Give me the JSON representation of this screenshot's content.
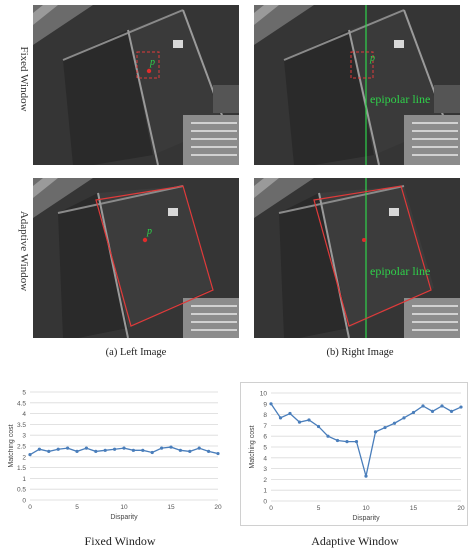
{
  "rows": [
    {
      "label": "Fixed Window"
    },
    {
      "label": "Adaptive Window"
    }
  ],
  "overlay": {
    "point_label": "p",
    "epipolar_label": "epipolar line",
    "colors": {
      "window": "#e03a3a",
      "epipolar": "#2fd24a",
      "point": "#e22b2b"
    }
  },
  "captions": {
    "left": "(a) Left Image",
    "right": "(b) Right Image"
  },
  "chart_data": [
    {
      "type": "line",
      "x": [
        0,
        1,
        2,
        3,
        4,
        5,
        6,
        7,
        8,
        9,
        10,
        11,
        12,
        13,
        14,
        15,
        16,
        17,
        18,
        19,
        20
      ],
      "series": [
        {
          "values": [
            2.1,
            2.35,
            2.25,
            2.35,
            2.4,
            2.25,
            2.4,
            2.25,
            2.3,
            2.35,
            2.4,
            2.3,
            2.3,
            2.2,
            2.4,
            2.45,
            2.3,
            2.25,
            2.4,
            2.25,
            2.15
          ]
        }
      ],
      "title": "",
      "xlabel": "Disparity",
      "ylabel": "Matching cost",
      "xlim": [
        0,
        20
      ],
      "ylim": [
        0,
        5
      ],
      "xticks": [
        "0",
        "5",
        "10",
        "15",
        "20"
      ],
      "yticks": [
        "0",
        "0.5",
        "1",
        "1.5",
        "2",
        "2.5",
        "3",
        "3.5",
        "4",
        "4.5",
        "5"
      ],
      "grid": true,
      "color": "#4a7ebb"
    },
    {
      "type": "line",
      "x": [
        0,
        1,
        2,
        3,
        4,
        5,
        6,
        7,
        8,
        9,
        10,
        11,
        12,
        13,
        14,
        15,
        16,
        17,
        18,
        19,
        20
      ],
      "series": [
        {
          "values": [
            9.0,
            7.7,
            8.1,
            7.3,
            7.5,
            6.9,
            6.0,
            5.6,
            5.5,
            5.5,
            2.3,
            6.4,
            6.8,
            7.2,
            7.7,
            8.2,
            8.8,
            8.3,
            8.8,
            8.3,
            8.7
          ]
        }
      ],
      "title": "",
      "xlabel": "Disparity",
      "ylabel": "Matching cost",
      "xlim": [
        0,
        20
      ],
      "ylim": [
        0,
        10
      ],
      "xticks": [
        "0",
        "5",
        "10",
        "15",
        "20"
      ],
      "yticks": [
        "0",
        "1",
        "2",
        "3",
        "4",
        "5",
        "6",
        "7",
        "8",
        "9",
        "10"
      ],
      "grid": true,
      "color": "#4a7ebb"
    }
  ],
  "bottom_captions": {
    "left": "Fixed Window",
    "right": "Adaptive Window"
  }
}
